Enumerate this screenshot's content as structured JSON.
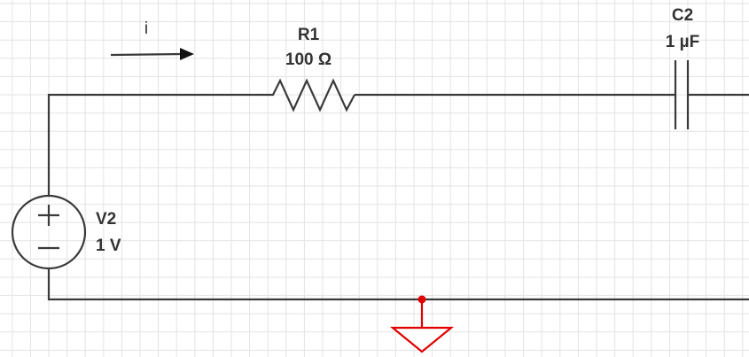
{
  "current": {
    "label": "i"
  },
  "components": [
    {
      "name": "R1",
      "value": "100 Ω"
    },
    {
      "name": "C2",
      "value": "1 µF"
    },
    {
      "name": "V2",
      "value": "1 V"
    }
  ]
}
